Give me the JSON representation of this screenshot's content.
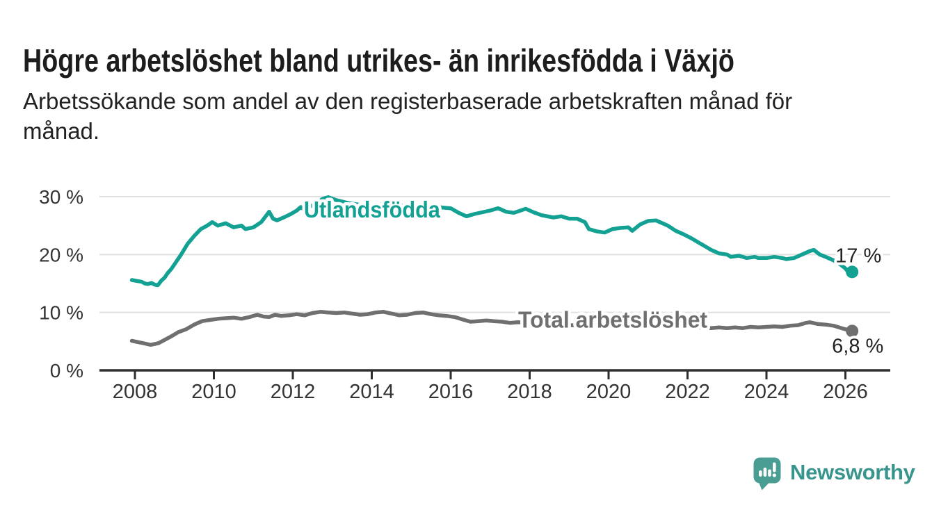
{
  "page": {
    "title": "Högre arbetslöshet bland utrikes- än inrikesfödda i Växjö",
    "subtitle_line1": "Arbetssökande som andel av den registerbaserade arbetskraften månad för",
    "subtitle_line2": "månad.",
    "logo_text": "Newsworthy"
  },
  "colors": {
    "accent_teal": "#12a192",
    "series_gray": "#6f6f6f",
    "grid": "#e0e0e0",
    "axis": "#2e2e2e",
    "axis_text": "#333333",
    "end_label_text": "#222222",
    "logo_icon": "#4a9d93",
    "logo_text": "#37958d"
  },
  "chart_data": {
    "type": "line",
    "title": "Högre arbetslöshet bland utrikes- än inrikesfödda i Växjö",
    "subtitle": "Arbetssökande som andel av den registerbaserade arbetskraften månad för månad.",
    "xlabel": "",
    "ylabel": "",
    "xlim": [
      2007.55,
      2027.1
    ],
    "ylim": [
      0,
      30
    ],
    "grid": true,
    "x_ticks": [
      {
        "year": 2008,
        "label": "2008"
      },
      {
        "year": 2010,
        "label": "2010"
      },
      {
        "year": 2012,
        "label": "2012"
      },
      {
        "year": 2014,
        "label": "2014"
      },
      {
        "year": 2016,
        "label": "2016"
      },
      {
        "year": 2018,
        "label": "2018"
      },
      {
        "year": 2020,
        "label": "2020"
      },
      {
        "year": 2022,
        "label": "2022"
      },
      {
        "year": 2024,
        "label": "2024"
      },
      {
        "year": 2026,
        "label": "2026"
      }
    ],
    "y_ticks": [
      {
        "value": 0,
        "label": "0 %"
      },
      {
        "value": 10,
        "label": "10 %"
      },
      {
        "value": 20,
        "label": "20 %"
      },
      {
        "value": 30,
        "label": "30 %"
      }
    ],
    "series": [
      {
        "name": "Total arbetslöshet",
        "color": "#6f6f6f",
        "end_label": "6,8 %",
        "end_value": 6.8,
        "label_anchor": {
          "year": 2017.71,
          "value": 7.4
        },
        "points": [
          [
            2007.92,
            5.1
          ],
          [
            2008.2,
            4.7
          ],
          [
            2008.4,
            4.4
          ],
          [
            2008.6,
            4.7
          ],
          [
            2008.9,
            5.8
          ],
          [
            2009.1,
            6.6
          ],
          [
            2009.3,
            7.1
          ],
          [
            2009.5,
            7.9
          ],
          [
            2009.7,
            8.5
          ],
          [
            2009.9,
            8.7
          ],
          [
            2010.1,
            8.9
          ],
          [
            2010.3,
            9.0
          ],
          [
            2010.5,
            9.1
          ],
          [
            2010.7,
            8.9
          ],
          [
            2010.9,
            9.2
          ],
          [
            2011.1,
            9.6
          ],
          [
            2011.25,
            9.3
          ],
          [
            2011.4,
            9.2
          ],
          [
            2011.55,
            9.6
          ],
          [
            2011.7,
            9.4
          ],
          [
            2011.9,
            9.5
          ],
          [
            2012.1,
            9.7
          ],
          [
            2012.3,
            9.5
          ],
          [
            2012.5,
            9.9
          ],
          [
            2012.7,
            10.1
          ],
          [
            2012.9,
            10.0
          ],
          [
            2013.1,
            9.9
          ],
          [
            2013.3,
            10.0
          ],
          [
            2013.5,
            9.8
          ],
          [
            2013.7,
            9.6
          ],
          [
            2013.9,
            9.7
          ],
          [
            2014.1,
            10.0
          ],
          [
            2014.3,
            10.1
          ],
          [
            2014.5,
            9.8
          ],
          [
            2014.7,
            9.5
          ],
          [
            2014.9,
            9.6
          ],
          [
            2015.1,
            9.9
          ],
          [
            2015.3,
            10.0
          ],
          [
            2015.5,
            9.7
          ],
          [
            2015.7,
            9.5
          ],
          [
            2015.9,
            9.4
          ],
          [
            2016.1,
            9.2
          ],
          [
            2016.3,
            8.8
          ],
          [
            2016.5,
            8.4
          ],
          [
            2016.7,
            8.5
          ],
          [
            2016.9,
            8.6
          ],
          [
            2017.1,
            8.5
          ],
          [
            2017.3,
            8.4
          ],
          [
            2017.5,
            8.2
          ],
          [
            2017.7,
            8.3
          ],
          [
            2018.0,
            8.2
          ],
          [
            2018.5,
            8.0
          ],
          [
            2019.0,
            7.8
          ],
          [
            2019.5,
            7.7
          ],
          [
            2020.0,
            8.2
          ],
          [
            2020.5,
            8.8
          ],
          [
            2021.0,
            8.5
          ],
          [
            2021.5,
            8.0
          ],
          [
            2022.0,
            7.6
          ],
          [
            2022.3,
            7.4
          ],
          [
            2022.6,
            7.3
          ],
          [
            2022.8,
            7.4
          ],
          [
            2023.0,
            7.3
          ],
          [
            2023.2,
            7.4
          ],
          [
            2023.4,
            7.3
          ],
          [
            2023.6,
            7.5
          ],
          [
            2023.8,
            7.4
          ],
          [
            2024.0,
            7.5
          ],
          [
            2024.2,
            7.6
          ],
          [
            2024.4,
            7.5
          ],
          [
            2024.6,
            7.7
          ],
          [
            2024.8,
            7.8
          ],
          [
            2025.0,
            8.2
          ],
          [
            2025.1,
            8.3
          ],
          [
            2025.3,
            8.0
          ],
          [
            2025.5,
            7.9
          ],
          [
            2025.7,
            7.7
          ],
          [
            2025.9,
            7.3
          ],
          [
            2026.05,
            7.0
          ],
          [
            2026.17,
            6.8
          ]
        ]
      },
      {
        "name": "Utlandsfödda",
        "color": "#12a192",
        "end_label": "17 %",
        "end_value": 17,
        "label_anchor": {
          "year": 2012.28,
          "value": 26.4
        },
        "points": [
          [
            2007.92,
            15.6
          ],
          [
            2008.08,
            15.4
          ],
          [
            2008.17,
            15.3
          ],
          [
            2008.25,
            15.0
          ],
          [
            2008.33,
            14.9
          ],
          [
            2008.42,
            15.1
          ],
          [
            2008.5,
            14.8
          ],
          [
            2008.58,
            14.7
          ],
          [
            2008.67,
            15.5
          ],
          [
            2008.75,
            16.0
          ],
          [
            2008.83,
            16.8
          ],
          [
            2008.92,
            17.5
          ],
          [
            2009.0,
            18.3
          ],
          [
            2009.17,
            20.0
          ],
          [
            2009.33,
            21.8
          ],
          [
            2009.5,
            23.2
          ],
          [
            2009.67,
            24.4
          ],
          [
            2009.83,
            25.0
          ],
          [
            2009.96,
            25.6
          ],
          [
            2010.1,
            25.0
          ],
          [
            2010.3,
            25.4
          ],
          [
            2010.5,
            24.7
          ],
          [
            2010.7,
            25.0
          ],
          [
            2010.8,
            24.4
          ],
          [
            2011.0,
            24.7
          ],
          [
            2011.2,
            25.6
          ],
          [
            2011.4,
            27.4
          ],
          [
            2011.5,
            26.2
          ],
          [
            2011.6,
            25.9
          ],
          [
            2011.8,
            26.5
          ],
          [
            2011.95,
            27.0
          ],
          [
            2012.1,
            27.6
          ],
          [
            2012.2,
            28.2
          ],
          [
            2012.3,
            27.7
          ],
          [
            2012.4,
            28.2
          ],
          [
            2012.6,
            28.8
          ],
          [
            2012.75,
            29.6
          ],
          [
            2012.9,
            29.9
          ],
          [
            2013.1,
            29.4
          ],
          [
            2013.4,
            28.9
          ],
          [
            2013.7,
            28.6
          ],
          [
            2014.0,
            28.4
          ],
          [
            2014.3,
            28.7
          ],
          [
            2014.6,
            28.3
          ],
          [
            2014.9,
            28.5
          ],
          [
            2015.2,
            28.2
          ],
          [
            2015.5,
            28.4
          ],
          [
            2015.8,
            28.1
          ],
          [
            2016.0,
            28.0
          ],
          [
            2016.2,
            27.2
          ],
          [
            2016.4,
            26.6
          ],
          [
            2016.6,
            27.0
          ],
          [
            2016.8,
            27.3
          ],
          [
            2017.0,
            27.6
          ],
          [
            2017.2,
            28.0
          ],
          [
            2017.4,
            27.4
          ],
          [
            2017.6,
            27.2
          ],
          [
            2017.9,
            27.9
          ],
          [
            2018.1,
            27.3
          ],
          [
            2018.3,
            26.8
          ],
          [
            2018.6,
            26.4
          ],
          [
            2018.8,
            26.6
          ],
          [
            2019.0,
            26.2
          ],
          [
            2019.2,
            26.2
          ],
          [
            2019.4,
            25.6
          ],
          [
            2019.5,
            24.4
          ],
          [
            2019.7,
            24.0
          ],
          [
            2019.9,
            23.8
          ],
          [
            2020.1,
            24.4
          ],
          [
            2020.3,
            24.6
          ],
          [
            2020.5,
            24.7
          ],
          [
            2020.6,
            24.1
          ],
          [
            2020.8,
            25.2
          ],
          [
            2021.0,
            25.8
          ],
          [
            2021.2,
            25.9
          ],
          [
            2021.4,
            25.3
          ],
          [
            2021.5,
            25.0
          ],
          [
            2021.7,
            24.1
          ],
          [
            2021.9,
            23.5
          ],
          [
            2022.1,
            22.8
          ],
          [
            2022.3,
            22.0
          ],
          [
            2022.4,
            21.6
          ],
          [
            2022.6,
            20.8
          ],
          [
            2022.8,
            20.2
          ],
          [
            2023.0,
            20.0
          ],
          [
            2023.1,
            19.6
          ],
          [
            2023.3,
            19.8
          ],
          [
            2023.5,
            19.4
          ],
          [
            2023.7,
            19.6
          ],
          [
            2023.8,
            19.4
          ],
          [
            2024.0,
            19.4
          ],
          [
            2024.2,
            19.6
          ],
          [
            2024.4,
            19.4
          ],
          [
            2024.5,
            19.2
          ],
          [
            2024.7,
            19.4
          ],
          [
            2024.9,
            20.0
          ],
          [
            2025.1,
            20.6
          ],
          [
            2025.2,
            20.8
          ],
          [
            2025.35,
            20.0
          ],
          [
            2025.5,
            19.6
          ],
          [
            2025.7,
            19.0
          ],
          [
            2025.85,
            18.4
          ],
          [
            2026.0,
            17.6
          ],
          [
            2026.08,
            16.9
          ],
          [
            2026.17,
            17.0
          ]
        ]
      }
    ]
  }
}
